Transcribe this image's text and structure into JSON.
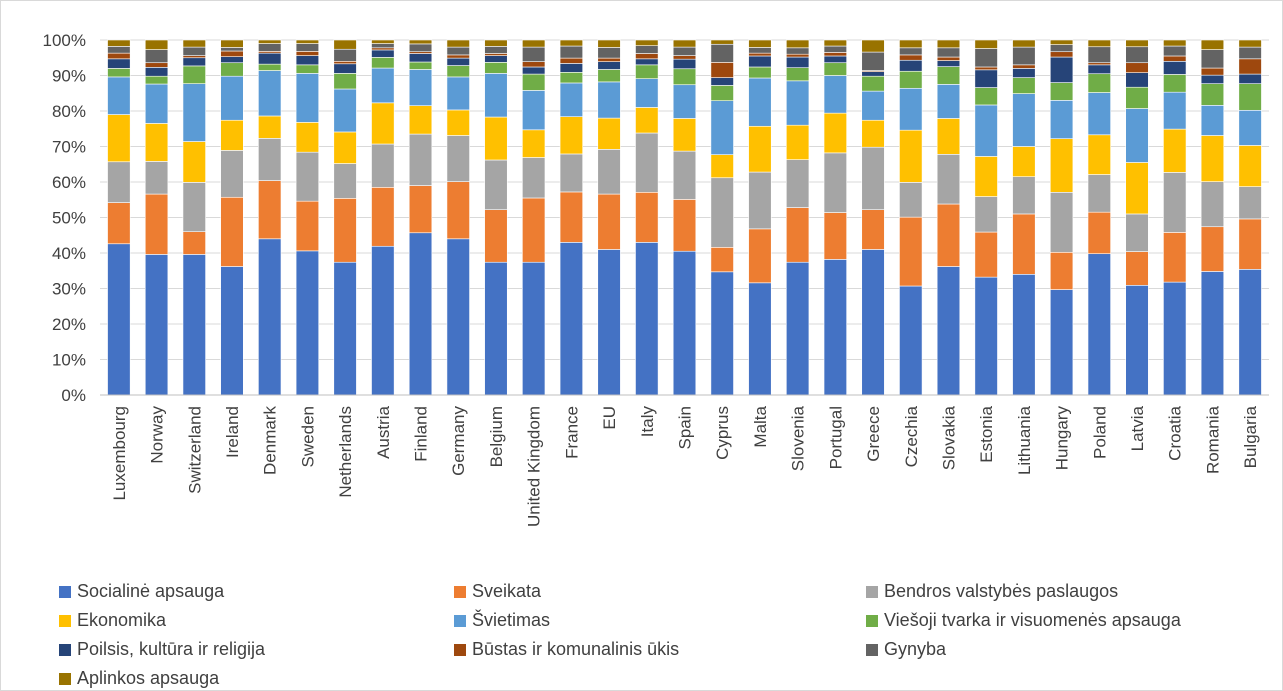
{
  "chart_data": {
    "type": "bar",
    "stacked": "percent",
    "title": "",
    "xlabel": "",
    "ylabel": "",
    "ylim": [
      0,
      100
    ],
    "ytick_labels": [
      "0%",
      "10%",
      "20%",
      "30%",
      "40%",
      "50%",
      "60%",
      "70%",
      "80%",
      "90%",
      "100%"
    ],
    "grid": "horizontal",
    "legend_position": "bottom",
    "categories": [
      "Luxembourg",
      "Norway",
      "Switzerland",
      "Ireland",
      "Denmark",
      "Sweden",
      "Netherlands",
      "Austria",
      "Finland",
      "Germany",
      "Belgium",
      "United Kingdom",
      "France",
      "EU",
      "Italy",
      "Spain",
      "Cyprus",
      "Malta",
      "Slovenia",
      "Portugal",
      "Greece",
      "Czechia",
      "Slovakia",
      "Estonia",
      "Lithuania",
      "Hungary",
      "Poland",
      "Latvia",
      "Croatia",
      "Romania",
      "Bulgaria"
    ],
    "series": [
      {
        "name": "Socialinė apsauga",
        "color": "#4472c4",
        "values": [
          42.6,
          39.6,
          39.6,
          36.2,
          44.0,
          40.6,
          37.4,
          41.9,
          45.7,
          44.0,
          37.4,
          37.4,
          43.0,
          41.0,
          43.0,
          40.5,
          34.7,
          31.6,
          37.4,
          38.2,
          41.0,
          30.7,
          36.2,
          33.2,
          34.0,
          29.7,
          39.8,
          30.9,
          31.8,
          34.8,
          35.4
        ]
      },
      {
        "name": "Sveikata",
        "color": "#ed7d31",
        "values": [
          11.6,
          17.0,
          6.4,
          19.5,
          16.4,
          14.0,
          18.0,
          16.6,
          13.3,
          16.1,
          14.8,
          18.1,
          14.2,
          15.6,
          14.1,
          14.6,
          6.9,
          15.2,
          15.4,
          13.2,
          11.2,
          19.4,
          17.6,
          12.7,
          17.0,
          10.5,
          11.7,
          9.5,
          14.0,
          12.6,
          14.2
        ]
      },
      {
        "name": "Bendros valstybės paslaugos",
        "color": "#a5a5a5",
        "values": [
          11.5,
          9.2,
          13.9,
          13.2,
          11.9,
          13.8,
          9.8,
          12.2,
          14.5,
          13.0,
          14.0,
          11.4,
          10.7,
          12.6,
          16.7,
          13.6,
          19.6,
          16.0,
          13.5,
          16.8,
          17.6,
          9.8,
          14.0,
          10.0,
          10.5,
          16.9,
          10.6,
          10.6,
          16.9,
          12.7,
          9.1
        ]
      },
      {
        "name": "Ekonomika",
        "color": "#ffc000",
        "values": [
          13.3,
          10.7,
          11.5,
          8.5,
          6.3,
          8.4,
          8.9,
          11.6,
          8.0,
          7.2,
          12.1,
          7.8,
          10.5,
          8.8,
          7.2,
          9.2,
          6.5,
          12.9,
          9.7,
          11.2,
          7.6,
          14.7,
          10.1,
          11.3,
          8.5,
          15.1,
          11.2,
          14.5,
          12.2,
          13.0,
          11.6
        ]
      },
      {
        "name": "Švietimas",
        "color": "#5b9bd5",
        "values": [
          10.6,
          11.1,
          16.3,
          12.4,
          12.8,
          13.8,
          12.1,
          9.8,
          10.2,
          9.3,
          12.3,
          11.1,
          9.5,
          10.2,
          8.1,
          9.5,
          15.2,
          13.6,
          12.5,
          10.6,
          8.2,
          11.8,
          9.6,
          14.5,
          14.9,
          10.8,
          11.9,
          15.2,
          10.4,
          8.5,
          9.9
        ]
      },
      {
        "name": "Viešoji tvarka ir visuomenės apsauga",
        "color": "#70ad47",
        "values": [
          2.4,
          2.2,
          5.0,
          3.8,
          1.8,
          2.4,
          4.4,
          3.0,
          2.1,
          3.2,
          3.1,
          4.6,
          3.0,
          3.5,
          3.9,
          4.5,
          4.3,
          3.1,
          3.7,
          3.6,
          4.2,
          4.8,
          5.0,
          4.9,
          4.5,
          5.0,
          5.3,
          6.0,
          5.0,
          6.1,
          7.5
        ]
      },
      {
        "name": "Poilsis, kultūra ir religija",
        "color": "#264478",
        "values": [
          2.7,
          2.5,
          2.3,
          1.7,
          3.1,
          2.6,
          2.7,
          2.1,
          2.4,
          2.1,
          1.9,
          2.0,
          2.5,
          2.2,
          1.7,
          2.7,
          2.2,
          3.1,
          3.0,
          1.9,
          1.3,
          3.1,
          1.7,
          5.0,
          2.6,
          7.2,
          2.5,
          4.1,
          3.7,
          2.4,
          2.7
        ]
      },
      {
        "name": "Būstas ir komunalinis ūkis",
        "color": "#9e480e",
        "values": [
          1.6,
          1.3,
          0.6,
          1.6,
          0.5,
          1.2,
          0.7,
          0.6,
          0.5,
          0.9,
          0.6,
          1.5,
          1.5,
          1.0,
          1.5,
          1.0,
          4.3,
          0.8,
          0.8,
          1.0,
          0.3,
          1.5,
          1.0,
          0.8,
          1.0,
          1.5,
          0.6,
          2.8,
          1.5,
          2.0,
          4.3
        ]
      },
      {
        "name": "Gynyba",
        "color": "#636363",
        "values": [
          1.9,
          3.7,
          2.4,
          1.0,
          2.2,
          2.2,
          3.4,
          1.2,
          2.2,
          2.2,
          2.0,
          4.1,
          3.4,
          3.0,
          2.2,
          2.4,
          5.1,
          1.6,
          1.8,
          1.8,
          5.2,
          2.0,
          2.6,
          5.2,
          5.0,
          2.0,
          4.5,
          4.5,
          2.8,
          5.2,
          3.3
        ]
      },
      {
        "name": "Aplinkos apsauga",
        "color": "#997300",
        "values": [
          1.8,
          2.7,
          2.0,
          2.1,
          1.0,
          1.0,
          2.6,
          1.0,
          1.1,
          2.0,
          1.8,
          2.0,
          1.7,
          2.1,
          1.6,
          2.0,
          1.2,
          2.1,
          2.2,
          1.7,
          3.4,
          2.2,
          2.2,
          2.4,
          2.0,
          1.3,
          1.9,
          1.9,
          1.7,
          2.7,
          2.0
        ]
      }
    ]
  }
}
